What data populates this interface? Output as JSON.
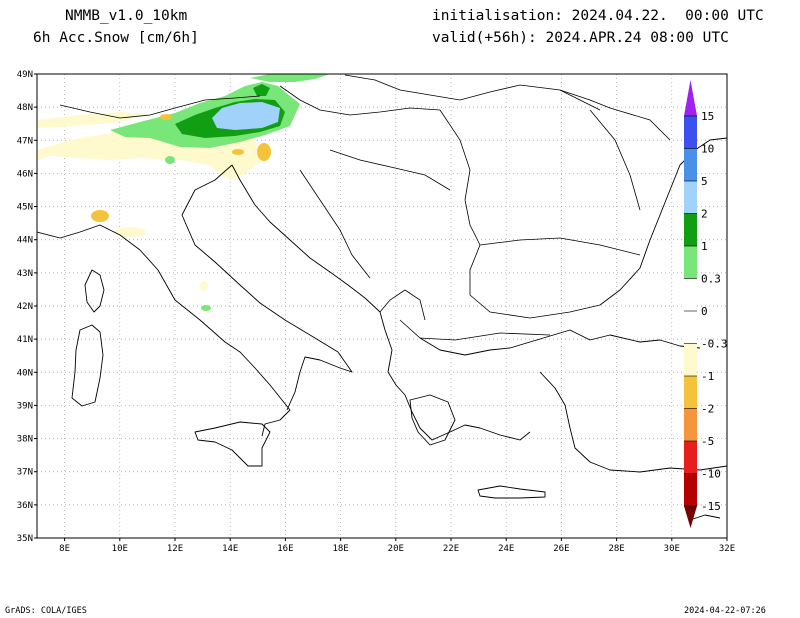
{
  "header": {
    "model": "NMMB_v1.0_10km",
    "field": "6h Acc.Snow [cm/6h]",
    "init": "initialisation: 2024.04.22.  00:00 UTC",
    "valid": "valid(+56h): 2024.APR.24 08:00 UTC"
  },
  "footer": {
    "credit": "GrADS: COLA/IGES",
    "timestamp": "2024-04-22-07:26"
  },
  "map": {
    "lat_labels": [
      "49N",
      "48N",
      "47N",
      "46N",
      "45N",
      "44N",
      "43N",
      "42N",
      "41N",
      "40N",
      "39N",
      "38N",
      "37N",
      "36N",
      "35N"
    ],
    "lon_labels": [
      "8E",
      "10E",
      "12E",
      "14E",
      "16E",
      "18E",
      "20E",
      "22E",
      "24E",
      "26E",
      "28E",
      "30E",
      "32E"
    ],
    "lat_range": [
      35,
      49
    ],
    "lon_range": [
      7,
      32
    ]
  },
  "colorbar": {
    "labels": [
      "15",
      "10",
      "5",
      "2",
      "1",
      "0.3",
      "0",
      "-0.3",
      "-1",
      "-2",
      "-5",
      "-10",
      "-15"
    ],
    "colors": {
      "top_arrow": "#a020f0",
      "15": "#3c50f0",
      "10": "#4a90e8",
      "5": "#a0d2fa",
      "2": "#129e12",
      "1": "#78e678",
      "0.3": "#ffffff",
      "neg_0.3": "#fffacd",
      "neg_1": "#f5c23c",
      "neg_2": "#f5963c",
      "neg_5": "#e61e1e",
      "neg_10": "#b40000",
      "bottom_arrow": "#780000"
    }
  }
}
